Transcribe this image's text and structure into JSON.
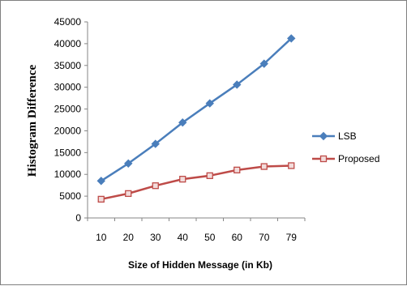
{
  "chart_data": {
    "type": "line",
    "title": "",
    "xlabel": "Size of Hidden Message (in Kb)",
    "ylabel": "Histogram Difference",
    "categories": [
      "10",
      "20",
      "30",
      "40",
      "50",
      "60",
      "70",
      "79"
    ],
    "ylim": [
      0,
      45000
    ],
    "yticks": [
      0,
      5000,
      10000,
      15000,
      20000,
      25000,
      30000,
      35000,
      40000,
      45000
    ],
    "grid": false,
    "legend_position": "right",
    "series": [
      {
        "name": "LSB",
        "color": "#4a7ebb",
        "marker": "diamond",
        "values": [
          8500,
          12500,
          17000,
          21900,
          26300,
          30600,
          35400,
          41200
        ]
      },
      {
        "name": "Proposed",
        "color": "#be4b48",
        "marker": "square",
        "values": [
          4300,
          5600,
          7400,
          8900,
          9700,
          11000,
          11800,
          12000
        ]
      }
    ]
  }
}
